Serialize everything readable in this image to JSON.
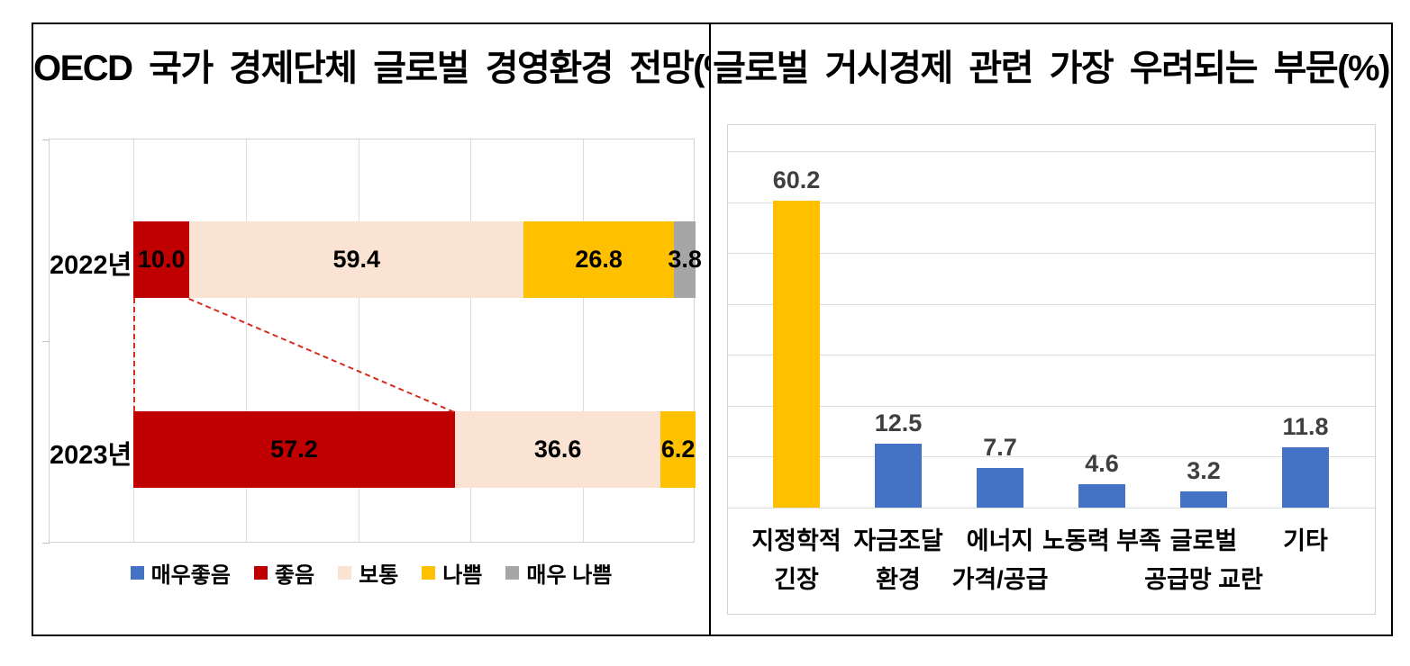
{
  "accent_colors": {
    "blue": "#4472C4",
    "dark_red": "#C00000",
    "cream": "#FBE3D3",
    "gold": "#FFC000",
    "gray": "#A6A6A6",
    "dashed_connector_red": "#D62B20"
  },
  "chart_data": [
    {
      "type": "bar",
      "subtype": "horizontal-stacked",
      "title": "OECD 국가 경제단체 글로벌 경영환경 전망(%)",
      "categories": [
        "2022년",
        "2023년"
      ],
      "series": [
        {
          "name": "매우좋음",
          "color": "#4472C4",
          "values": [
            0,
            0
          ]
        },
        {
          "name": "좋음",
          "color": "#C00000",
          "values": [
            10.0,
            57.2
          ]
        },
        {
          "name": "보통",
          "color": "#FBE3D3",
          "values": [
            59.4,
            36.6
          ]
        },
        {
          "name": "나쁨",
          "color": "#FFC000",
          "values": [
            26.8,
            6.2
          ]
        },
        {
          "name": "매우 나쁨",
          "color": "#A6A6A6",
          "values": [
            3.8,
            0
          ]
        }
      ],
      "xlim": [
        0,
        100
      ],
      "gridline_interval": 20,
      "grid": "vertical",
      "legend_position": "bottom",
      "data_labels": {
        "2022년": [
          "10.0",
          "59.4",
          "26.8",
          "3.8"
        ],
        "2023년": [
          "57.2",
          "36.6",
          "6.2"
        ]
      },
      "annotation": "red dashed connector linking the 좋음 segment of 2022년 (10.0) to 2023년 (57.2)"
    },
    {
      "type": "bar",
      "subtype": "vertical",
      "title": "글로벌 거시경제 관련 가장 우려되는 부문(%)",
      "categories": [
        "지정학적 긴장",
        "자금조달 환경",
        "에너지 가격/공급",
        "노동력 부족",
        "글로벌 공급망 교란",
        "기타"
      ],
      "category_lines": [
        [
          "지정학적",
          "긴장"
        ],
        [
          "자금조달",
          "환경"
        ],
        [
          "에너지",
          "가격/공급"
        ],
        [
          "노동력 부족",
          ""
        ],
        [
          "글로벌",
          "공급망 교란"
        ],
        [
          "기타",
          ""
        ]
      ],
      "values": [
        60.2,
        12.5,
        7.7,
        4.6,
        3.2,
        11.8
      ],
      "data_labels": [
        "60.2",
        "12.5",
        "7.7",
        "4.6",
        "3.2",
        "11.8"
      ],
      "bar_colors": [
        "#FFC000",
        "#4472C4",
        "#4472C4",
        "#4472C4",
        "#4472C4",
        "#4472C4"
      ],
      "ylim": [
        0,
        70
      ],
      "gridline_interval": 10,
      "grid": "horizontal",
      "legend_position": "none"
    }
  ]
}
